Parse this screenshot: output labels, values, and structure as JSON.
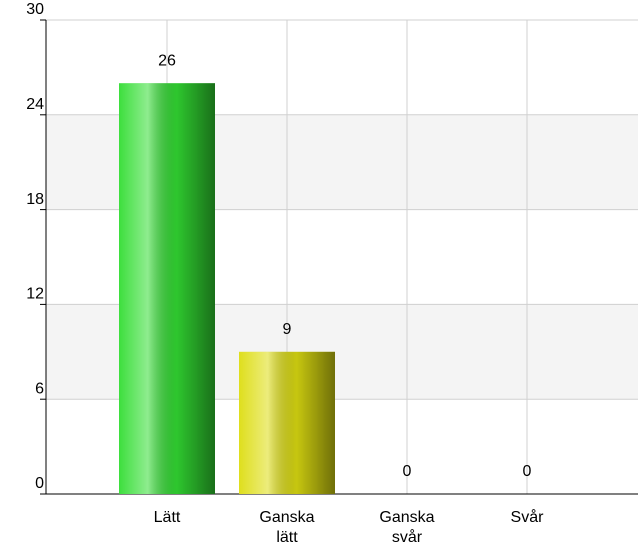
{
  "chart_data": {
    "type": "bar",
    "categories": [
      "Lätt",
      "Ganska lätt",
      "Ganska svår",
      "Svår"
    ],
    "values": [
      26,
      9,
      0,
      0
    ],
    "colors": [
      "#33dd33",
      "#dddd11",
      "#ff9900",
      "#ee3333"
    ],
    "ylim": [
      0,
      30
    ],
    "yticks": [
      0,
      6,
      12,
      18,
      24,
      30
    ],
    "grid": true
  }
}
